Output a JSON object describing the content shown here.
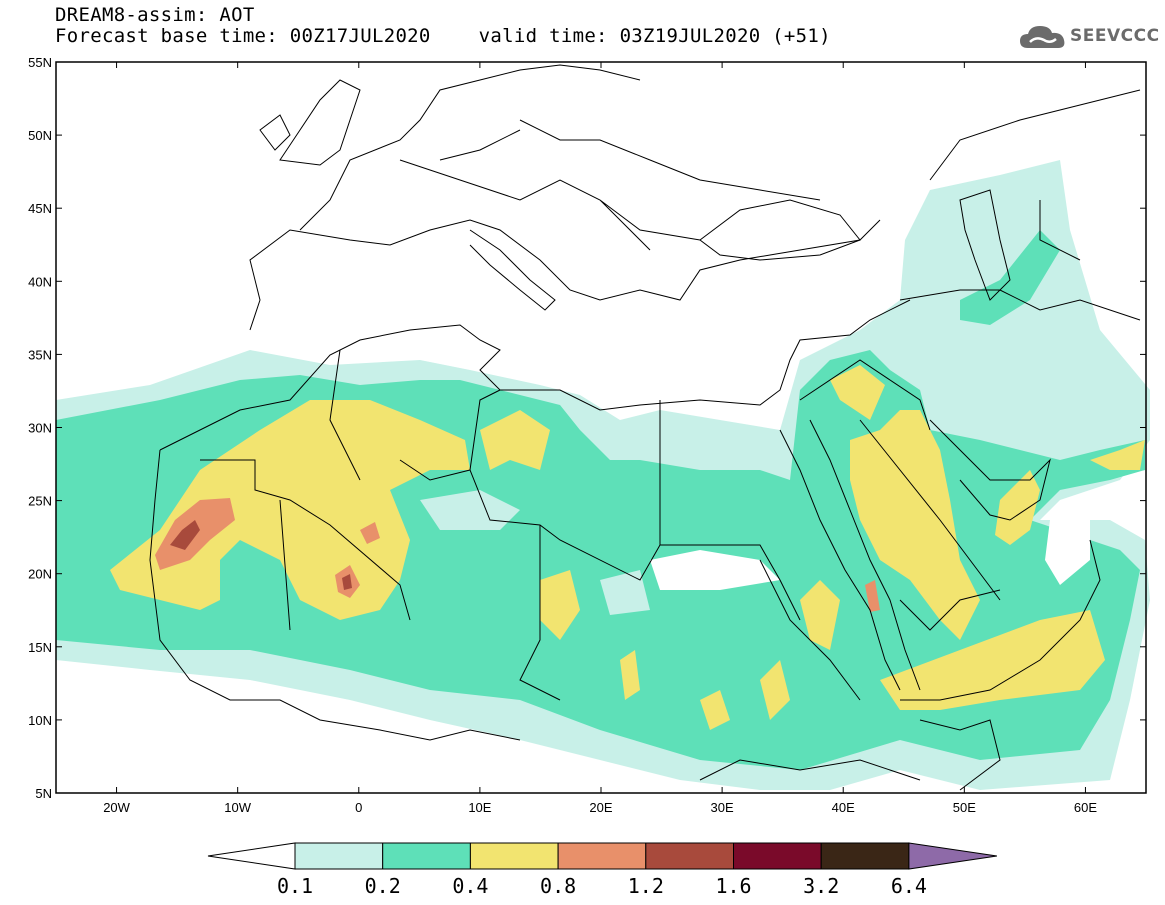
{
  "header": {
    "title": "DREAM8-assim: AOT",
    "base_label": "Forecast base time:",
    "base_time": "00Z17JUL2020",
    "valid_label": "valid time:",
    "valid_time": "03Z19JUL2020 (+51)"
  },
  "logo": {
    "text": "SEEVCCC",
    "icon": "cloud-icon",
    "color": "#6b6b6b"
  },
  "map": {
    "lat_range": [
      5,
      55
    ],
    "lon_range": [
      -25,
      65
    ],
    "lat_ticks": [
      "55N",
      "50N",
      "45N",
      "40N",
      "35N",
      "30N",
      "25N",
      "20N",
      "15N",
      "10N",
      "5N"
    ],
    "lon_ticks": [
      "20W",
      "10W",
      "0",
      "10E",
      "20E",
      "30E",
      "40E",
      "50E",
      "60E"
    ]
  },
  "colorbar": {
    "labels": [
      "0.1",
      "0.2",
      "0.4",
      "0.8",
      "1.2",
      "1.6",
      "3.2",
      "6.4"
    ],
    "colors": [
      "#ffffff",
      "#c8f0e8",
      "#5ee0b8",
      "#f2e470",
      "#e8906a",
      "#a84a3c",
      "#7a0a2a",
      "#3a2616",
      "#8e6aa8"
    ]
  }
}
